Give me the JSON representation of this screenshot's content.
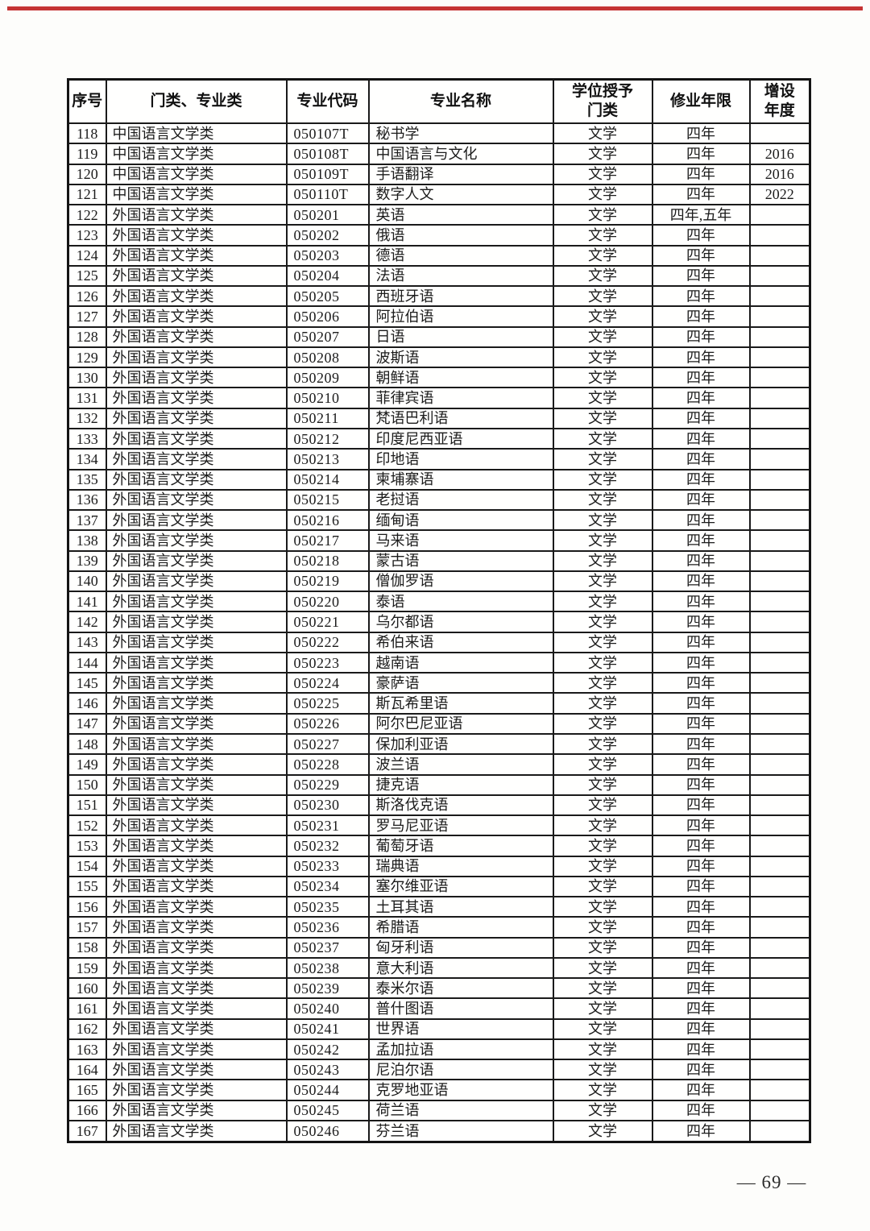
{
  "page": {
    "footer_page_number": "— 69 —",
    "accent_red": "#c53434"
  },
  "table": {
    "columns": [
      "序号",
      "门类、专业类",
      "专业代码",
      "专业名称",
      "学位授予\n门类",
      "修业年限",
      "增设\n年度"
    ],
    "rows": [
      [
        "118",
        "中国语言文学类",
        "050107T",
        "秘书学",
        "文学",
        "四年",
        ""
      ],
      [
        "119",
        "中国语言文学类",
        "050108T",
        "中国语言与文化",
        "文学",
        "四年",
        "2016"
      ],
      [
        "120",
        "中国语言文学类",
        "050109T",
        "手语翻译",
        "文学",
        "四年",
        "2016"
      ],
      [
        "121",
        "中国语言文学类",
        "050110T",
        "数字人文",
        "文学",
        "四年",
        "2022"
      ],
      [
        "122",
        "外国语言文学类",
        "050201",
        "英语",
        "文学",
        "四年,五年",
        ""
      ],
      [
        "123",
        "外国语言文学类",
        "050202",
        "俄语",
        "文学",
        "四年",
        ""
      ],
      [
        "124",
        "外国语言文学类",
        "050203",
        "德语",
        "文学",
        "四年",
        ""
      ],
      [
        "125",
        "外国语言文学类",
        "050204",
        "法语",
        "文学",
        "四年",
        ""
      ],
      [
        "126",
        "外国语言文学类",
        "050205",
        "西班牙语",
        "文学",
        "四年",
        ""
      ],
      [
        "127",
        "外国语言文学类",
        "050206",
        "阿拉伯语",
        "文学",
        "四年",
        ""
      ],
      [
        "128",
        "外国语言文学类",
        "050207",
        "日语",
        "文学",
        "四年",
        ""
      ],
      [
        "129",
        "外国语言文学类",
        "050208",
        "波斯语",
        "文学",
        "四年",
        ""
      ],
      [
        "130",
        "外国语言文学类",
        "050209",
        "朝鲜语",
        "文学",
        "四年",
        ""
      ],
      [
        "131",
        "外国语言文学类",
        "050210",
        "菲律宾语",
        "文学",
        "四年",
        ""
      ],
      [
        "132",
        "外国语言文学类",
        "050211",
        "梵语巴利语",
        "文学",
        "四年",
        ""
      ],
      [
        "133",
        "外国语言文学类",
        "050212",
        "印度尼西亚语",
        "文学",
        "四年",
        ""
      ],
      [
        "134",
        "外国语言文学类",
        "050213",
        "印地语",
        "文学",
        "四年",
        ""
      ],
      [
        "135",
        "外国语言文学类",
        "050214",
        "柬埔寨语",
        "文学",
        "四年",
        ""
      ],
      [
        "136",
        "外国语言文学类",
        "050215",
        "老挝语",
        "文学",
        "四年",
        ""
      ],
      [
        "137",
        "外国语言文学类",
        "050216",
        "缅甸语",
        "文学",
        "四年",
        ""
      ],
      [
        "138",
        "外国语言文学类",
        "050217",
        "马来语",
        "文学",
        "四年",
        ""
      ],
      [
        "139",
        "外国语言文学类",
        "050218",
        "蒙古语",
        "文学",
        "四年",
        ""
      ],
      [
        "140",
        "外国语言文学类",
        "050219",
        "僧伽罗语",
        "文学",
        "四年",
        ""
      ],
      [
        "141",
        "外国语言文学类",
        "050220",
        "泰语",
        "文学",
        "四年",
        ""
      ],
      [
        "142",
        "外国语言文学类",
        "050221",
        "乌尔都语",
        "文学",
        "四年",
        ""
      ],
      [
        "143",
        "外国语言文学类",
        "050222",
        "希伯来语",
        "文学",
        "四年",
        ""
      ],
      [
        "144",
        "外国语言文学类",
        "050223",
        "越南语",
        "文学",
        "四年",
        ""
      ],
      [
        "145",
        "外国语言文学类",
        "050224",
        "豪萨语",
        "文学",
        "四年",
        ""
      ],
      [
        "146",
        "外国语言文学类",
        "050225",
        "斯瓦希里语",
        "文学",
        "四年",
        ""
      ],
      [
        "147",
        "外国语言文学类",
        "050226",
        "阿尔巴尼亚语",
        "文学",
        "四年",
        ""
      ],
      [
        "148",
        "外国语言文学类",
        "050227",
        "保加利亚语",
        "文学",
        "四年",
        ""
      ],
      [
        "149",
        "外国语言文学类",
        "050228",
        "波兰语",
        "文学",
        "四年",
        ""
      ],
      [
        "150",
        "外国语言文学类",
        "050229",
        "捷克语",
        "文学",
        "四年",
        ""
      ],
      [
        "151",
        "外国语言文学类",
        "050230",
        "斯洛伐克语",
        "文学",
        "四年",
        ""
      ],
      [
        "152",
        "外国语言文学类",
        "050231",
        "罗马尼亚语",
        "文学",
        "四年",
        ""
      ],
      [
        "153",
        "外国语言文学类",
        "050232",
        "葡萄牙语",
        "文学",
        "四年",
        ""
      ],
      [
        "154",
        "外国语言文学类",
        "050233",
        "瑞典语",
        "文学",
        "四年",
        ""
      ],
      [
        "155",
        "外国语言文学类",
        "050234",
        "塞尔维亚语",
        "文学",
        "四年",
        ""
      ],
      [
        "156",
        "外国语言文学类",
        "050235",
        "土耳其语",
        "文学",
        "四年",
        ""
      ],
      [
        "157",
        "外国语言文学类",
        "050236",
        "希腊语",
        "文学",
        "四年",
        ""
      ],
      [
        "158",
        "外国语言文学类",
        "050237",
        "匈牙利语",
        "文学",
        "四年",
        ""
      ],
      [
        "159",
        "外国语言文学类",
        "050238",
        "意大利语",
        "文学",
        "四年",
        ""
      ],
      [
        "160",
        "外国语言文学类",
        "050239",
        "泰米尔语",
        "文学",
        "四年",
        ""
      ],
      [
        "161",
        "外国语言文学类",
        "050240",
        "普什图语",
        "文学",
        "四年",
        ""
      ],
      [
        "162",
        "外国语言文学类",
        "050241",
        "世界语",
        "文学",
        "四年",
        ""
      ],
      [
        "163",
        "外国语言文学类",
        "050242",
        "孟加拉语",
        "文学",
        "四年",
        ""
      ],
      [
        "164",
        "外国语言文学类",
        "050243",
        "尼泊尔语",
        "文学",
        "四年",
        ""
      ],
      [
        "165",
        "外国语言文学类",
        "050244",
        "克罗地亚语",
        "文学",
        "四年",
        ""
      ],
      [
        "166",
        "外国语言文学类",
        "050245",
        "荷兰语",
        "文学",
        "四年",
        ""
      ],
      [
        "167",
        "外国语言文学类",
        "050246",
        "芬兰语",
        "文学",
        "四年",
        ""
      ]
    ]
  }
}
